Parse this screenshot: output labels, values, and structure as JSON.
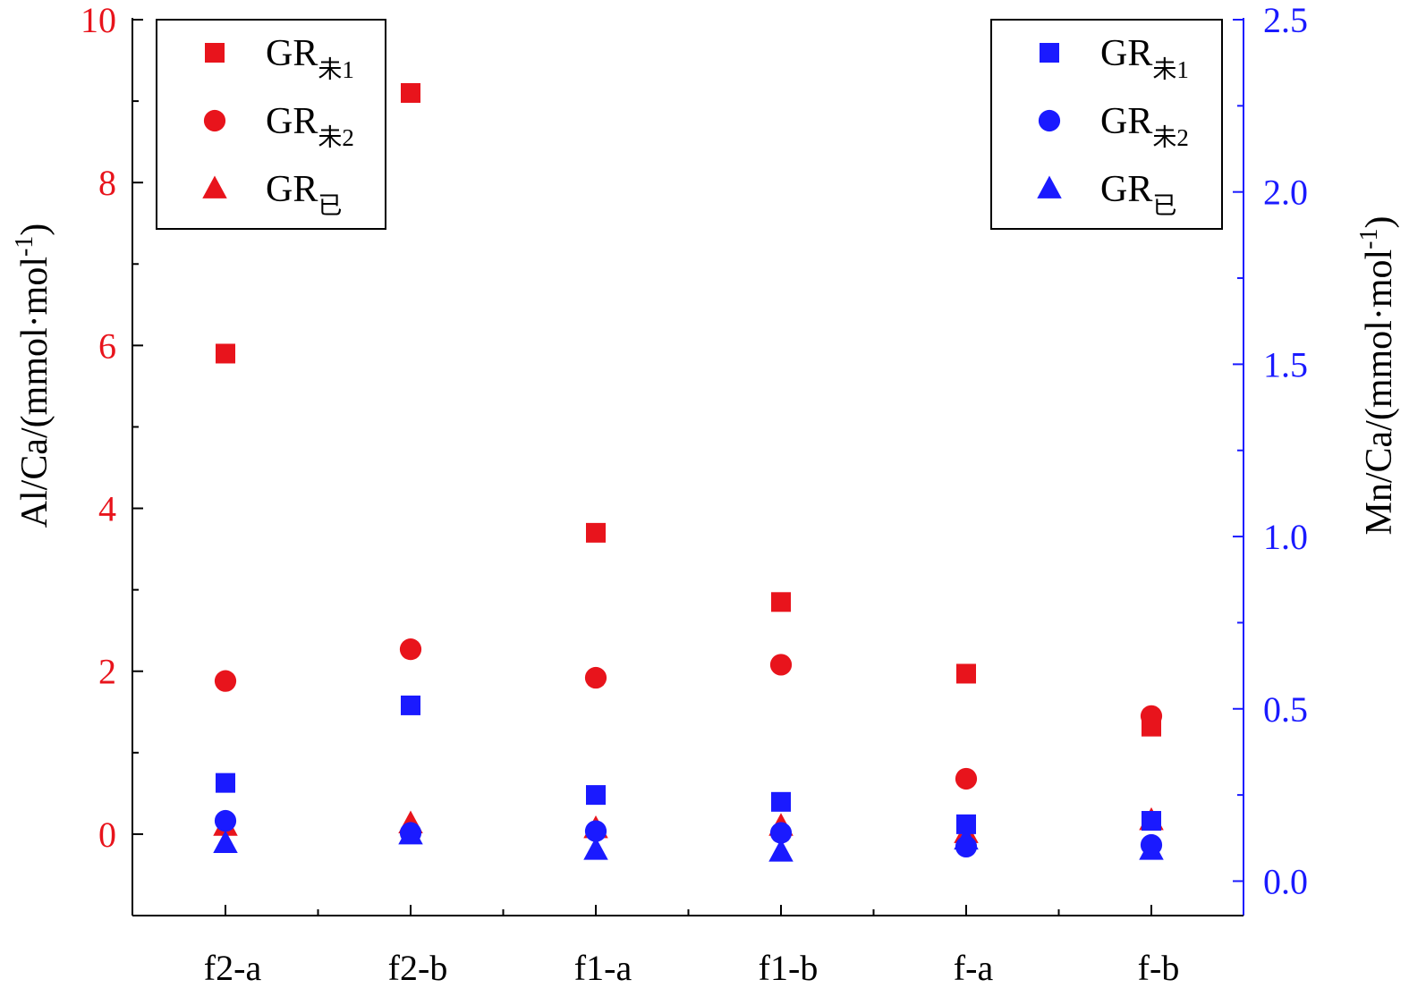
{
  "chart_data": {
    "type": "scatter",
    "categories": [
      "f2-a",
      "f2-b",
      "f1-a",
      "f1-b",
      "f-a",
      "f-b"
    ],
    "y_left": {
      "label_main": "Al/Ca/(mmol·mol",
      "label_sup": "-1",
      "label_close": ")",
      "color": "#e8141c",
      "ylim": [
        -1,
        10
      ],
      "ticks": [
        0,
        2,
        4,
        6,
        8,
        10
      ],
      "tick_labels": [
        "0",
        "2",
        "4",
        "6",
        "8",
        "10"
      ]
    },
    "y_right": {
      "label_main": "Mn/Ca/(mmol·mol",
      "label_sup": "-1",
      "label_close": ")",
      "color": "#1a1aff",
      "ylim": [
        -0.1,
        2.5
      ],
      "ticks": [
        0.0,
        0.5,
        1.0,
        1.5,
        2.0,
        2.5
      ],
      "tick_labels": [
        "0.0",
        "0.5",
        "1.0",
        "1.5",
        "2.0",
        "2.5"
      ]
    },
    "series": [
      {
        "name": "GR",
        "sub": "未1",
        "axis": "left",
        "marker": "square",
        "color": "#e8141c",
        "values": [
          5.9,
          9.1,
          3.7,
          2.85,
          1.97,
          1.32
        ]
      },
      {
        "name": "GR",
        "sub": "未2",
        "axis": "left",
        "marker": "circle",
        "color": "#e8141c",
        "values": [
          1.88,
          2.27,
          1.92,
          2.08,
          0.68,
          1.45
        ]
      },
      {
        "name": "GR",
        "sub": "已",
        "axis": "left",
        "marker": "triangle",
        "color": "#e8141c",
        "values": [
          0.1,
          0.13,
          0.07,
          0.1,
          0.01,
          0.17
        ]
      },
      {
        "name": "GR",
        "sub": "未1",
        "axis": "right",
        "marker": "square",
        "color": "#1a1aff",
        "values": [
          0.285,
          0.51,
          0.25,
          0.23,
          0.165,
          0.175
        ]
      },
      {
        "name": "GR",
        "sub": "未2",
        "axis": "right",
        "marker": "circle",
        "color": "#1a1aff",
        "values": [
          0.175,
          0.14,
          0.145,
          0.14,
          0.1,
          0.105
        ]
      },
      {
        "name": "GR",
        "sub": "已",
        "axis": "right",
        "marker": "triangle",
        "color": "#1a1aff",
        "values": [
          0.11,
          0.135,
          0.09,
          0.085,
          0.12,
          0.09
        ]
      }
    ],
    "legends": [
      {
        "placement": "top-left",
        "entries": [
          {
            "name": "GR",
            "sub": "未1",
            "marker": "square",
            "color": "#e8141c"
          },
          {
            "name": "GR",
            "sub": "未2",
            "marker": "circle",
            "color": "#e8141c"
          },
          {
            "name": "GR",
            "sub": "已",
            "marker": "triangle",
            "color": "#e8141c"
          }
        ]
      },
      {
        "placement": "top-right",
        "entries": [
          {
            "name": "GR",
            "sub": "未1",
            "marker": "square",
            "color": "#1a1aff"
          },
          {
            "name": "GR",
            "sub": "未2",
            "marker": "circle",
            "color": "#1a1aff"
          },
          {
            "name": "GR",
            "sub": "已",
            "marker": "triangle",
            "color": "#1a1aff"
          }
        ]
      }
    ],
    "grid": false,
    "xlabel": ""
  }
}
